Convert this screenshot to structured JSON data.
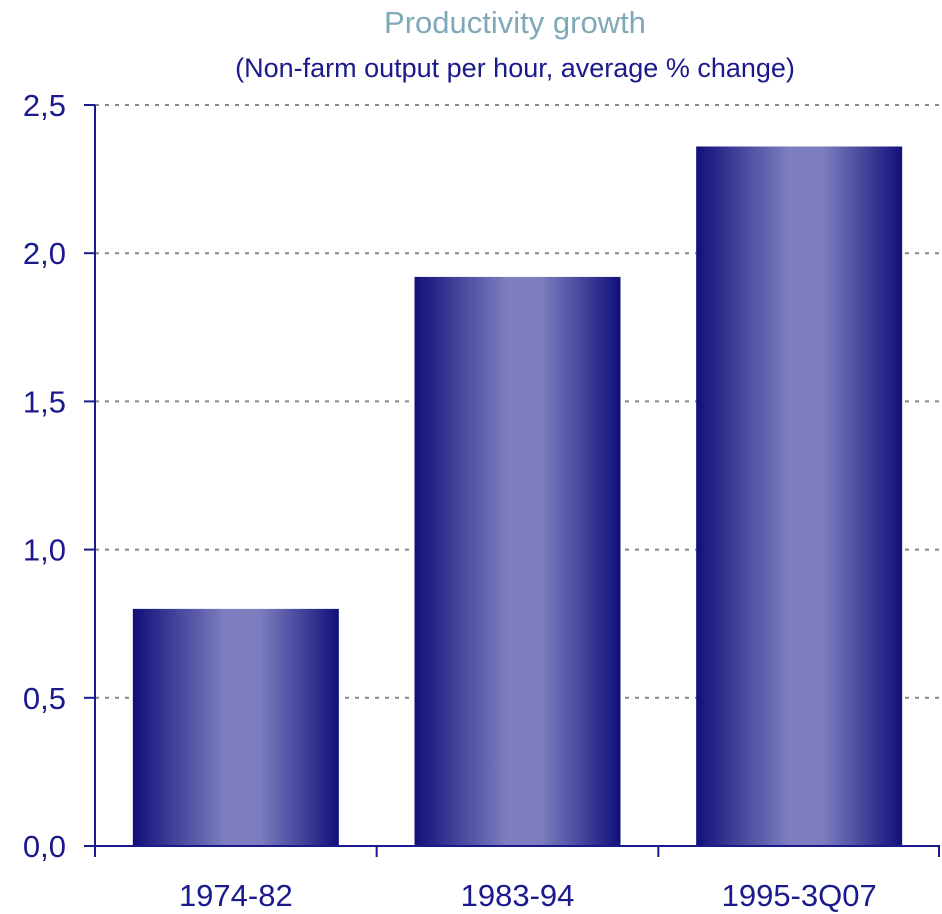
{
  "chart_data": {
    "type": "bar",
    "title": "Productivity growth",
    "subtitle": "(Non-farm output per hour, average % change)",
    "categories": [
      "1974-82",
      "1983-94",
      "1995-3Q07"
    ],
    "values": [
      0.8,
      1.92,
      2.36
    ],
    "ylim": [
      0,
      2.5
    ],
    "yticks": [
      0.0,
      0.5,
      1.0,
      1.5,
      2.0,
      2.5
    ],
    "ytick_labels": [
      "0,0",
      "0,5",
      "1,0",
      "1,5",
      "2,0",
      "2,5"
    ],
    "xlabel": "",
    "ylabel": "",
    "grid": true,
    "legend": "none",
    "colors": {
      "bar_dark": "#10107a",
      "bar_light": "#7d7fbf",
      "axis": "#1a1a8c",
      "grid": "#888888",
      "title": "#7fa9b8",
      "text": "#1a1a8c"
    }
  }
}
